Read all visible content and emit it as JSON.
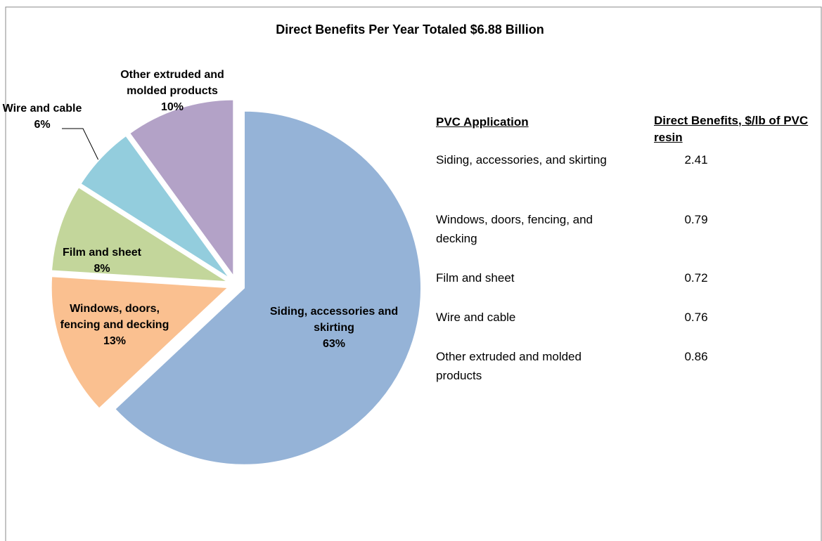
{
  "chart_data": {
    "type": "pie",
    "title": "Direct Benefits Per Year Totaled $6.88 Billion",
    "categories": [
      "Siding, accessories and skirting",
      "Windows, doors, fencing and decking",
      "Film and sheet",
      "Wire and cable",
      "Other extruded and molded products"
    ],
    "values": [
      63,
      13,
      8,
      6,
      10
    ],
    "value_labels": [
      "63%",
      "13%",
      "8%",
      "6%",
      "10%"
    ],
    "colors": [
      "#95b3d7",
      "#fac090",
      "#c3d69b",
      "#93cddd",
      "#b3a2c7"
    ]
  },
  "table": {
    "header": [
      "PVC Application",
      "Direct Benefits, $/lb of PVC resin"
    ],
    "rows": [
      [
        "Siding, accessories, and skirting",
        2.41
      ],
      [
        "Windows, doors, fencing, and decking",
        0.79
      ],
      [
        "Film and sheet",
        0.72
      ],
      [
        "Wire and cable",
        0.76
      ],
      [
        "Other extruded and molded products",
        0.86
      ]
    ]
  }
}
